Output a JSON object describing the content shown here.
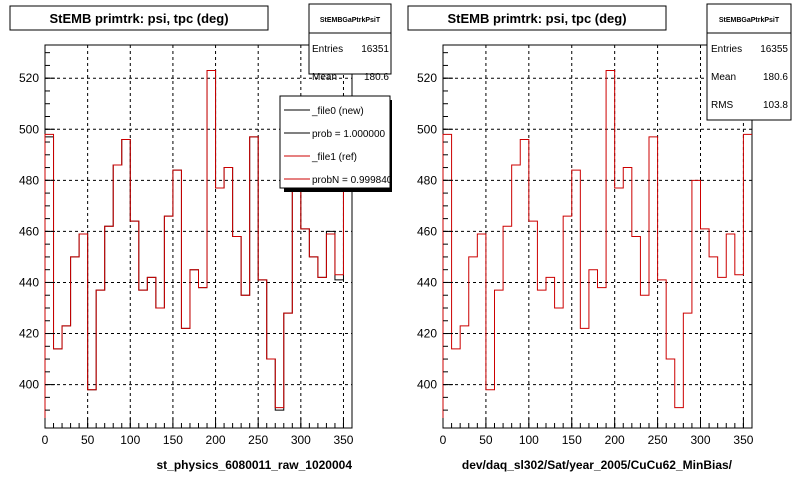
{
  "chart_data": [
    {
      "type": "line",
      "title": "StEMB primtrk: psi, tpc (deg)",
      "xlabel": "st_physics_6080011_raw_1020004",
      "xlim": [
        0,
        360
      ],
      "ylim": [
        383,
        533
      ],
      "x_ticks": [
        0,
        50,
        100,
        150,
        200,
        250,
        300,
        350
      ],
      "y_ticks": [
        400,
        420,
        440,
        460,
        480,
        500,
        520
      ],
      "grid": true,
      "bin_edges": [
        0,
        10,
        20,
        30,
        40,
        50,
        60,
        70,
        80,
        90,
        100,
        110,
        120,
        130,
        140,
        150,
        160,
        170,
        180,
        190,
        200,
        210,
        220,
        230,
        240,
        250,
        260,
        270,
        280,
        290,
        300,
        310,
        320,
        330,
        340,
        350,
        360
      ],
      "series": [
        {
          "name": "_file0 (new)",
          "color": "#000000",
          "values": [
            497,
            414,
            423,
            450,
            459,
            398,
            437,
            462,
            486,
            496,
            464,
            437,
            442,
            430,
            466,
            484,
            422,
            445,
            438,
            523,
            477,
            485,
            458,
            435,
            497,
            441,
            410,
            390,
            428,
            480,
            461,
            450,
            442,
            460,
            441,
            497
          ]
        },
        {
          "name": "_file1 (ref)",
          "color": "#cc0000",
          "values": [
            498,
            414,
            423,
            450,
            459,
            398,
            437,
            462,
            486,
            496,
            464,
            437,
            442,
            430,
            466,
            484,
            422,
            445,
            438,
            523,
            477,
            485,
            458,
            435,
            497,
            441,
            410,
            391,
            428,
            480,
            461,
            450,
            442,
            459,
            443,
            498
          ]
        }
      ],
      "legend": {
        "position": "top-right",
        "entries": [
          {
            "label": "_file0 (new)",
            "color": "#000000"
          },
          {
            "label": "prob = 1.000000",
            "color": "#000000"
          },
          {
            "label": "_file1 (ref)",
            "color": "#cc0000"
          },
          {
            "label": "probN = 0.999840",
            "color": "#cc0000"
          }
        ]
      },
      "stats": {
        "title": "StEMBGaPtrkPsiT",
        "rows": [
          {
            "name": "Entries",
            "value": "16351"
          },
          {
            "name": "Mean",
            "value": "180.6"
          }
        ]
      }
    },
    {
      "type": "line",
      "title": "StEMB primtrk: psi, tpc (deg)",
      "xlabel": "dev/daq_sl302/Sat/year_2005/CuCu62_MinBias/",
      "xlim": [
        0,
        360
      ],
      "ylim": [
        383,
        533
      ],
      "x_ticks": [
        0,
        50,
        100,
        150,
        200,
        250,
        300,
        350
      ],
      "y_ticks": [
        400,
        420,
        440,
        460,
        480,
        500,
        520
      ],
      "grid": true,
      "bin_edges": [
        0,
        10,
        20,
        30,
        40,
        50,
        60,
        70,
        80,
        90,
        100,
        110,
        120,
        130,
        140,
        150,
        160,
        170,
        180,
        190,
        200,
        210,
        220,
        230,
        240,
        250,
        260,
        270,
        280,
        290,
        300,
        310,
        320,
        330,
        340,
        350,
        360
      ],
      "series": [
        {
          "name": "",
          "color": "#cc0000",
          "values": [
            498,
            414,
            423,
            450,
            459,
            398,
            437,
            462,
            486,
            496,
            464,
            437,
            442,
            430,
            466,
            484,
            422,
            445,
            438,
            523,
            477,
            485,
            458,
            435,
            497,
            441,
            410,
            391,
            428,
            480,
            461,
            450,
            442,
            459,
            443,
            498
          ]
        }
      ],
      "stats": {
        "title": "StEMBGaPtrkPsiT",
        "rows": [
          {
            "name": "Entries",
            "value": "16355"
          },
          {
            "name": "Mean",
            "value": "180.6"
          },
          {
            "name": "RMS",
            "value": "103.8"
          }
        ]
      }
    }
  ]
}
